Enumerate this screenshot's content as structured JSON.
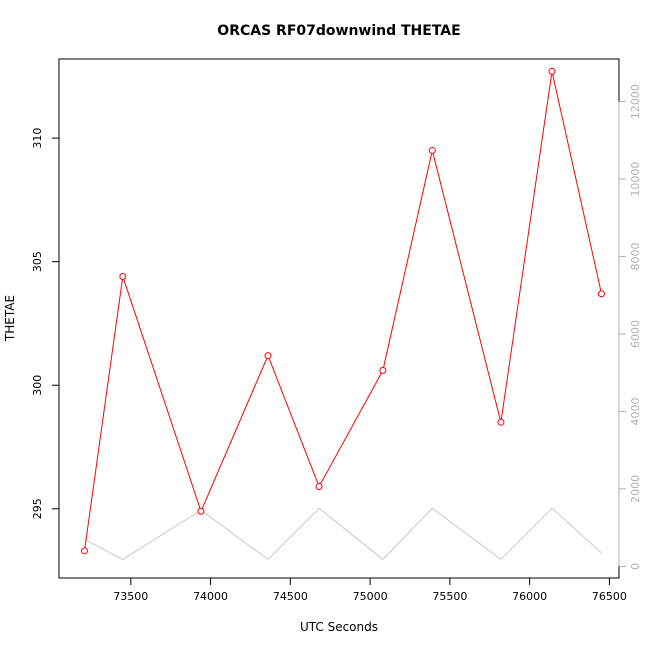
{
  "chart_data": {
    "type": "line",
    "title": "ORCAS RF07downwind THETAE",
    "xlabel": "UTC Seconds",
    "ylabel": "THETAE",
    "xlim": [
      73050,
      76560
    ],
    "ylim": [
      292.2,
      313.2
    ],
    "y2lim": [
      -300,
      13100
    ],
    "x_ticks": [
      73500,
      74000,
      74500,
      75000,
      75500,
      76000,
      76500
    ],
    "y_ticks": [
      295,
      300,
      305,
      310
    ],
    "y2_ticks": [
      0,
      2000,
      4000,
      6000,
      8000,
      10000,
      12000
    ],
    "series": [
      {
        "axis": "left",
        "color": "#ff0000",
        "markers": "open-circle",
        "x": [
          73210,
          73450,
          73940,
          74360,
          74680,
          75080,
          75390,
          75820,
          76140,
          76450
        ],
        "y": [
          293.3,
          304.4,
          294.9,
          301.2,
          295.9,
          300.6,
          309.5,
          298.5,
          312.7,
          303.7
        ]
      },
      {
        "axis": "right",
        "color": "#c8c8c8",
        "markers": "none",
        "x": [
          73210,
          73450,
          73940,
          74360,
          74680,
          75080,
          75390,
          75820,
          76140,
          76450
        ],
        "y": [
          700,
          180,
          1450,
          180,
          1500,
          180,
          1500,
          180,
          1500,
          350
        ]
      }
    ]
  }
}
